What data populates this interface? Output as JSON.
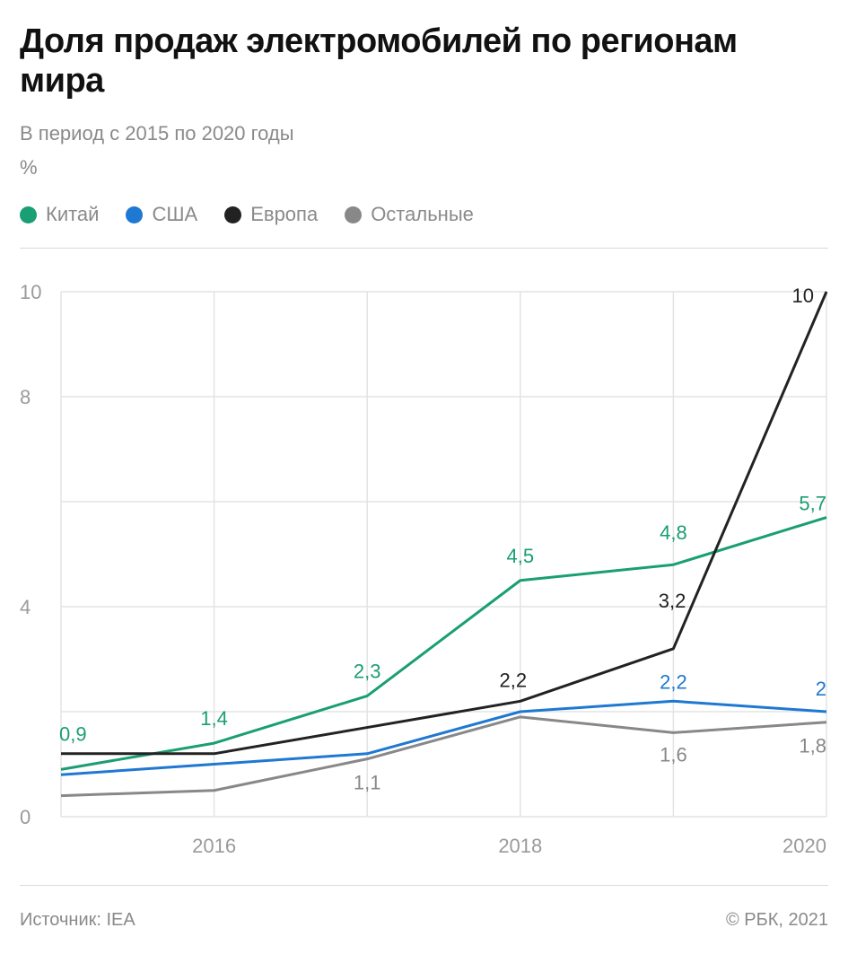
{
  "header": {
    "title": "Доля продаж электромобилей по регионам мира",
    "subtitle": "В период с 2015 по 2020 годы",
    "unit": "%"
  },
  "legend": [
    {
      "label": "Китай",
      "color": "#1a9e73"
    },
    {
      "label": "США",
      "color": "#1f78d1"
    },
    {
      "label": "Европа",
      "color": "#222222"
    },
    {
      "label": "Остальные",
      "color": "#888888"
    }
  ],
  "footer": {
    "source": "Источник: IEA",
    "copyright": "© РБК, 2021"
  },
  "chart_data": {
    "type": "line",
    "x": [
      2015,
      2016,
      2017,
      2018,
      2019,
      2020
    ],
    "x_tick_labels": [
      "2016",
      "2018",
      "2020"
    ],
    "x_tick_values": [
      2016,
      2018,
      2020
    ],
    "y_tick_labels": [
      "0",
      "4",
      "8",
      "10"
    ],
    "y_tick_values": [
      0,
      4,
      8,
      10
    ],
    "y_gridlines": [
      0,
      2,
      4,
      6,
      8,
      10
    ],
    "ylim": [
      0,
      10
    ],
    "xlim": [
      2015,
      2020
    ],
    "grid": true,
    "legend_position": "top-left",
    "series": [
      {
        "name": "Китай",
        "color": "#1a9e73",
        "values": [
          0.9,
          1.4,
          2.3,
          4.5,
          4.8,
          5.7
        ],
        "labels": [
          "0,9",
          "1,4",
          "2,3",
          "4,5",
          "4,8",
          "5,7"
        ]
      },
      {
        "name": "США",
        "color": "#1f78d1",
        "values": [
          0.8,
          1.0,
          1.2,
          2.0,
          2.2,
          2.0
        ],
        "labels": [
          null,
          null,
          null,
          null,
          "2,2",
          "2"
        ]
      },
      {
        "name": "Европа",
        "color": "#222222",
        "values": [
          1.2,
          1.2,
          1.7,
          2.2,
          3.2,
          10.0
        ],
        "labels": [
          null,
          null,
          null,
          "2,2",
          "3,2",
          "10"
        ]
      },
      {
        "name": "Остальные",
        "color": "#888888",
        "values": [
          0.4,
          0.5,
          1.1,
          1.9,
          1.6,
          1.8
        ],
        "labels": [
          null,
          null,
          "1,1",
          null,
          "1,6",
          "1,8"
        ]
      }
    ]
  }
}
